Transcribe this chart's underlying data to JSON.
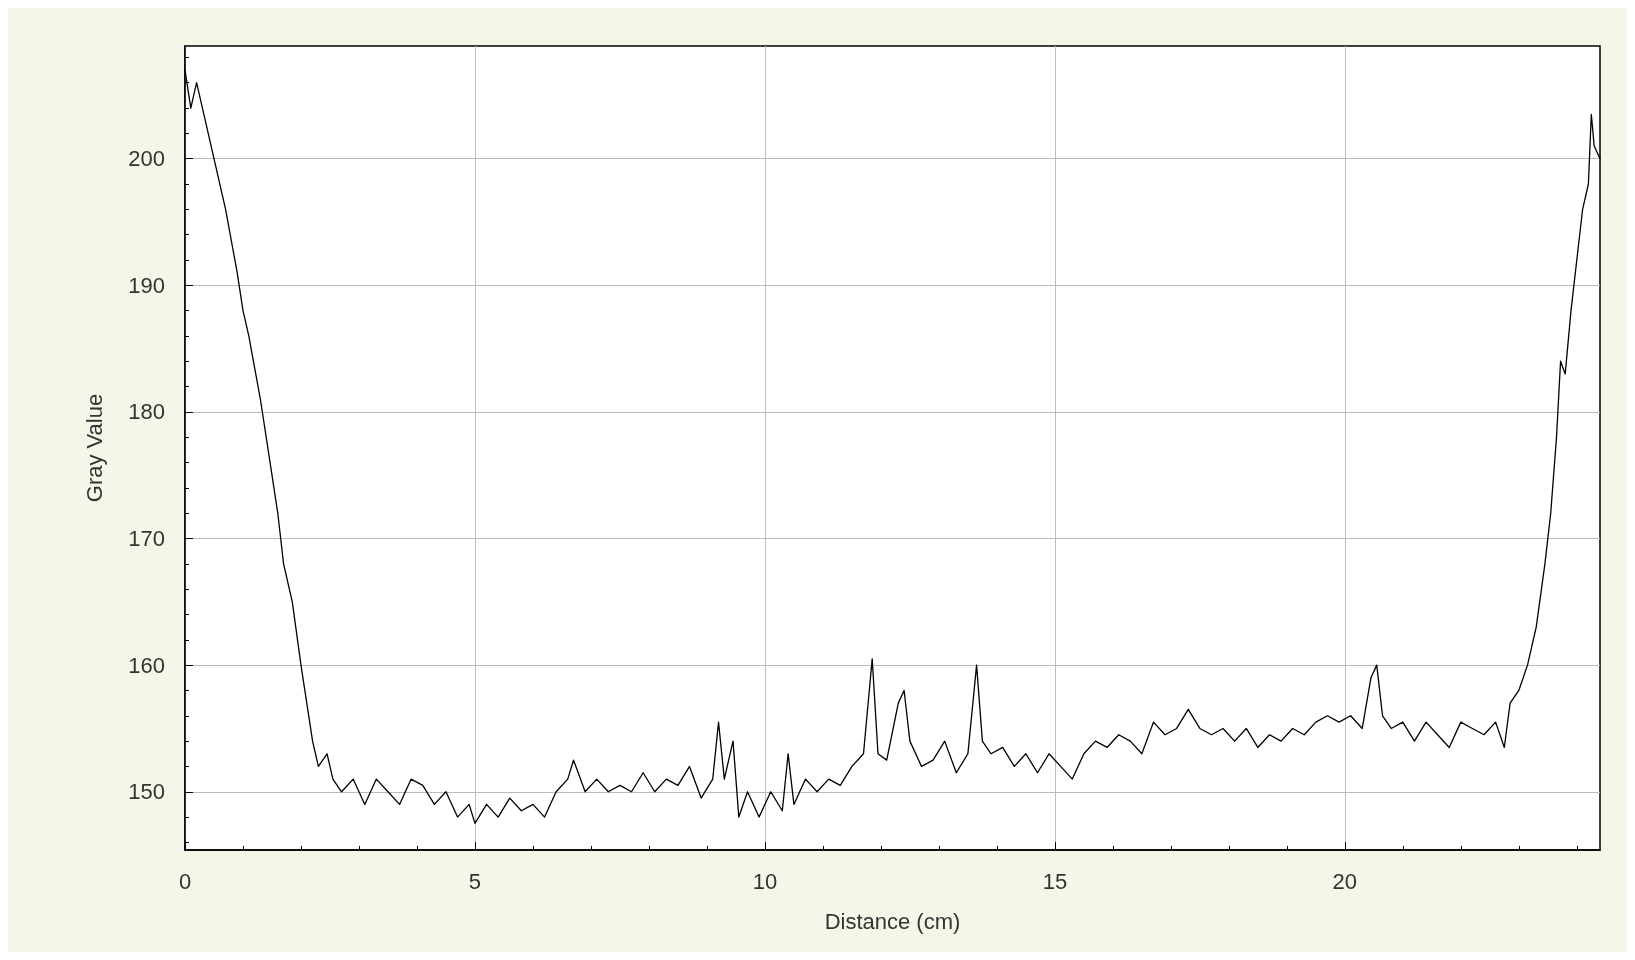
{
  "chart_data": {
    "type": "line",
    "xlabel": "Distance (cm)",
    "ylabel": "Gray Value",
    "xlim": [
      0,
      24.4
    ],
    "ylim": [
      145.4,
      208.9
    ],
    "xticks": [
      0,
      5,
      10,
      15,
      20
    ],
    "yticks": [
      150,
      160,
      170,
      180,
      190,
      200
    ],
    "grid": true,
    "marker": "none",
    "line_style": "solid",
    "series": [
      {
        "color": "#000000",
        "x": [
          0,
          0.1,
          0.2,
          0.35,
          0.5,
          0.7,
          0.9,
          1.0,
          1.1,
          1.3,
          1.5,
          1.6,
          1.7,
          1.85,
          2.0,
          2.1,
          2.2,
          2.3,
          2.45,
          2.55,
          2.7,
          2.9,
          3.1,
          3.3,
          3.5,
          3.7,
          3.9,
          4.1,
          4.3,
          4.5,
          4.7,
          4.9,
          5.0,
          5.2,
          5.4,
          5.6,
          5.8,
          6.0,
          6.2,
          6.4,
          6.6,
          6.7,
          6.9,
          7.1,
          7.3,
          7.5,
          7.7,
          7.9,
          8.1,
          8.3,
          8.5,
          8.7,
          8.9,
          9.1,
          9.2,
          9.3,
          9.45,
          9.55,
          9.7,
          9.9,
          10.1,
          10.3,
          10.4,
          10.5,
          10.7,
          10.9,
          11.1,
          11.3,
          11.5,
          11.7,
          11.85,
          11.95,
          12.1,
          12.3,
          12.4,
          12.5,
          12.7,
          12.9,
          13.1,
          13.3,
          13.5,
          13.65,
          13.75,
          13.9,
          14.1,
          14.3,
          14.5,
          14.7,
          14.9,
          15.1,
          15.3,
          15.5,
          15.7,
          15.9,
          16.1,
          16.3,
          16.5,
          16.7,
          16.9,
          17.1,
          17.3,
          17.5,
          17.7,
          17.9,
          18.1,
          18.3,
          18.5,
          18.7,
          18.9,
          19.1,
          19.3,
          19.5,
          19.7,
          19.9,
          20.1,
          20.3,
          20.45,
          20.55,
          20.65,
          20.8,
          21.0,
          21.2,
          21.4,
          21.6,
          21.8,
          22.0,
          22.2,
          22.4,
          22.6,
          22.75,
          22.85,
          23.0,
          23.15,
          23.3,
          23.45,
          23.55,
          23.65,
          23.72,
          23.8,
          23.9,
          24.0,
          24.1,
          24.2,
          24.25,
          24.3,
          24.4
        ],
        "values": [
          207,
          204,
          206,
          203,
          200,
          196,
          191,
          188,
          186,
          181,
          175,
          172,
          168,
          165,
          160,
          157,
          154,
          152,
          153,
          151,
          150,
          151,
          149,
          151,
          150,
          149,
          151,
          150.5,
          149,
          150,
          148,
          149,
          147.5,
          149,
          148,
          149.5,
          148.5,
          149,
          148,
          150,
          151,
          152.5,
          150,
          151,
          150,
          150.5,
          150,
          151.5,
          150,
          151,
          150.5,
          152,
          149.5,
          151,
          155.5,
          151,
          154,
          148,
          150,
          148,
          150,
          148.5,
          153,
          149,
          151,
          150,
          151,
          150.5,
          152,
          153,
          160.5,
          153,
          152.5,
          157,
          158,
          154,
          152,
          152.5,
          154,
          151.5,
          153,
          160,
          154,
          153,
          153.5,
          152,
          153,
          151.5,
          153,
          152,
          151,
          153,
          154,
          153.5,
          154.5,
          154,
          153,
          155.5,
          154.5,
          155,
          156.5,
          155,
          154.5,
          155,
          154,
          155,
          153.5,
          154.5,
          154,
          155,
          154.5,
          155.5,
          156,
          155.5,
          156,
          155,
          159,
          160,
          156,
          155,
          155.5,
          154,
          155.5,
          154.5,
          153.5,
          155.5,
          155,
          154.5,
          155.5,
          153.5,
          157,
          158,
          160,
          163,
          168,
          172,
          178,
          184,
          183,
          188,
          192,
          196,
          198,
          203.5,
          201,
          200
        ]
      }
    ]
  }
}
